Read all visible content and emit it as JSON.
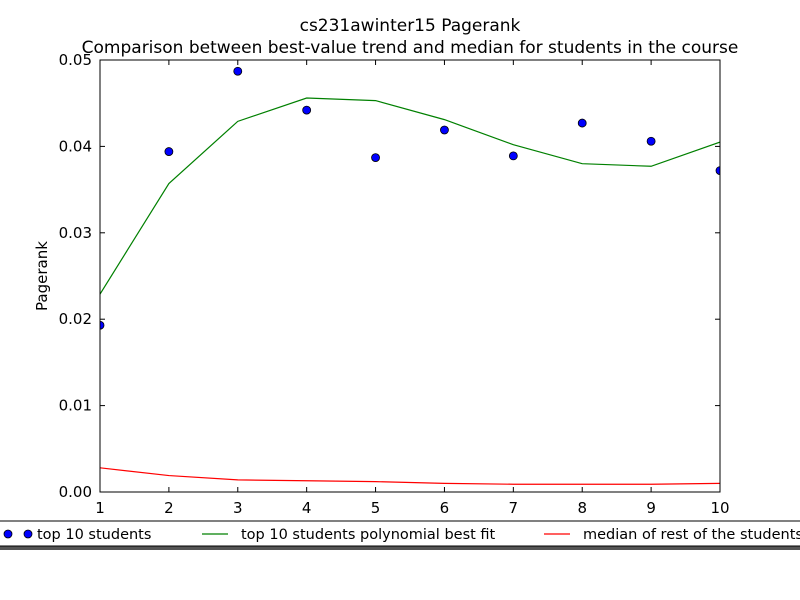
{
  "chart_data": {
    "type": "line",
    "title": "cs231awinter15 Pagerank",
    "subtitle": "Comparison between best-value trend and median for students in the course",
    "xlabel": "",
    "ylabel": "Pagerank",
    "xlim": [
      1,
      10
    ],
    "ylim": [
      0,
      0.05
    ],
    "x_ticks": [
      "1",
      "2",
      "3",
      "4",
      "5",
      "6",
      "7",
      "8",
      "9",
      "10"
    ],
    "y_ticks": [
      "0.00",
      "0.01",
      "0.02",
      "0.03",
      "0.04",
      "0.05"
    ],
    "grid": false,
    "legend_position": "bottom",
    "series": [
      {
        "name": "top 10 students",
        "kind": "scatter",
        "color": "#0000ff",
        "x": [
          1,
          2,
          3,
          4,
          5,
          6,
          7,
          8,
          9,
          10
        ],
        "y": [
          0.0193,
          0.0394,
          0.0487,
          0.0442,
          0.0387,
          0.0419,
          0.0389,
          0.0427,
          0.0406,
          0.0372
        ]
      },
      {
        "name": "top 10 students polynomial best fit",
        "kind": "line",
        "color": "#008000",
        "x": [
          1,
          2,
          3,
          4,
          5,
          6,
          7,
          8,
          9,
          10
        ],
        "y": [
          0.0229,
          0.0357,
          0.0429,
          0.0456,
          0.0453,
          0.0431,
          0.0402,
          0.038,
          0.0377,
          0.0405
        ]
      },
      {
        "name": "median of rest of the students",
        "kind": "line",
        "color": "#ff0000",
        "x": [
          1,
          2,
          3,
          4,
          5,
          6,
          7,
          8,
          9,
          10
        ],
        "y": [
          0.0028,
          0.0019,
          0.0014,
          0.0013,
          0.0012,
          0.001,
          0.0009,
          0.0009,
          0.0009,
          0.001
        ]
      }
    ]
  }
}
